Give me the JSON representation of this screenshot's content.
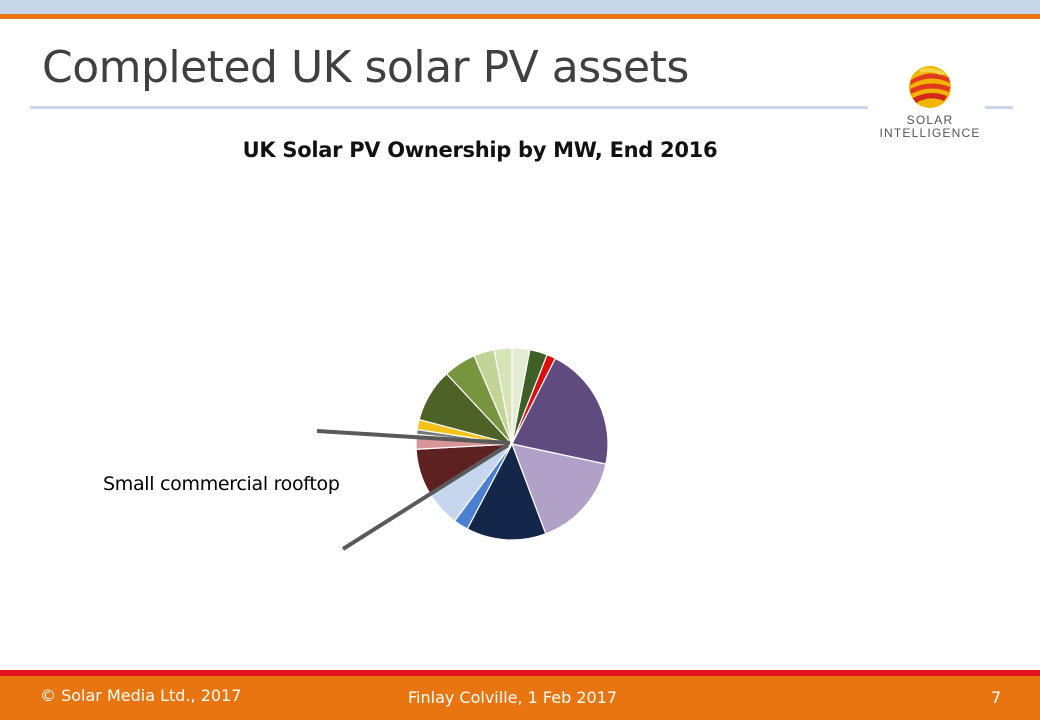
{
  "slide": {
    "title": "Completed UK solar PV assets",
    "logo_line1": "SOLAR",
    "logo_line2": "INTELLIGENCE"
  },
  "footer": {
    "copyright": "© Solar Media Ltd., 2017",
    "author_date": "Finlay Colville, 1 Feb 2017",
    "page_number": "7"
  },
  "colors": {
    "accent_orange": "#e8750f",
    "accent_red": "#e0131b",
    "band_blue": "#c9d7ea"
  },
  "chart_data": {
    "type": "pie",
    "title": "UK Solar PV Ownership by MW, End 2016",
    "annotations": [
      "Small commercial rooftop"
    ],
    "slices": [
      {
        "value": 3.0,
        "color": "#e3ebd2"
      },
      {
        "value": 3.0,
        "color": "#3e5f26"
      },
      {
        "value": 1.5,
        "color": "#e00c0c"
      },
      {
        "value": 21.0,
        "color": "#5f4b7e"
      },
      {
        "value": 16.0,
        "color": "#b1a1c8"
      },
      {
        "value": 13.5,
        "color": "#14264a"
      },
      {
        "value": 2.5,
        "color": "#4a7fd1"
      },
      {
        "value": 6.0,
        "color": "#c7d6ef"
      },
      {
        "value": 8.0,
        "color": "#5e2121"
      },
      {
        "value": 2.5,
        "color": "#d8959a"
      },
      {
        "value": 0.8,
        "color": "#787878"
      },
      {
        "value": 1.7,
        "color": "#f5c21a"
      },
      {
        "value": 9.0,
        "color": "#4e6127"
      },
      {
        "value": 5.5,
        "color": "#76953e"
      },
      {
        "value": 3.5,
        "color": "#c2d596"
      },
      {
        "value": 3.0,
        "color": "#d6e4b8"
      }
    ]
  }
}
